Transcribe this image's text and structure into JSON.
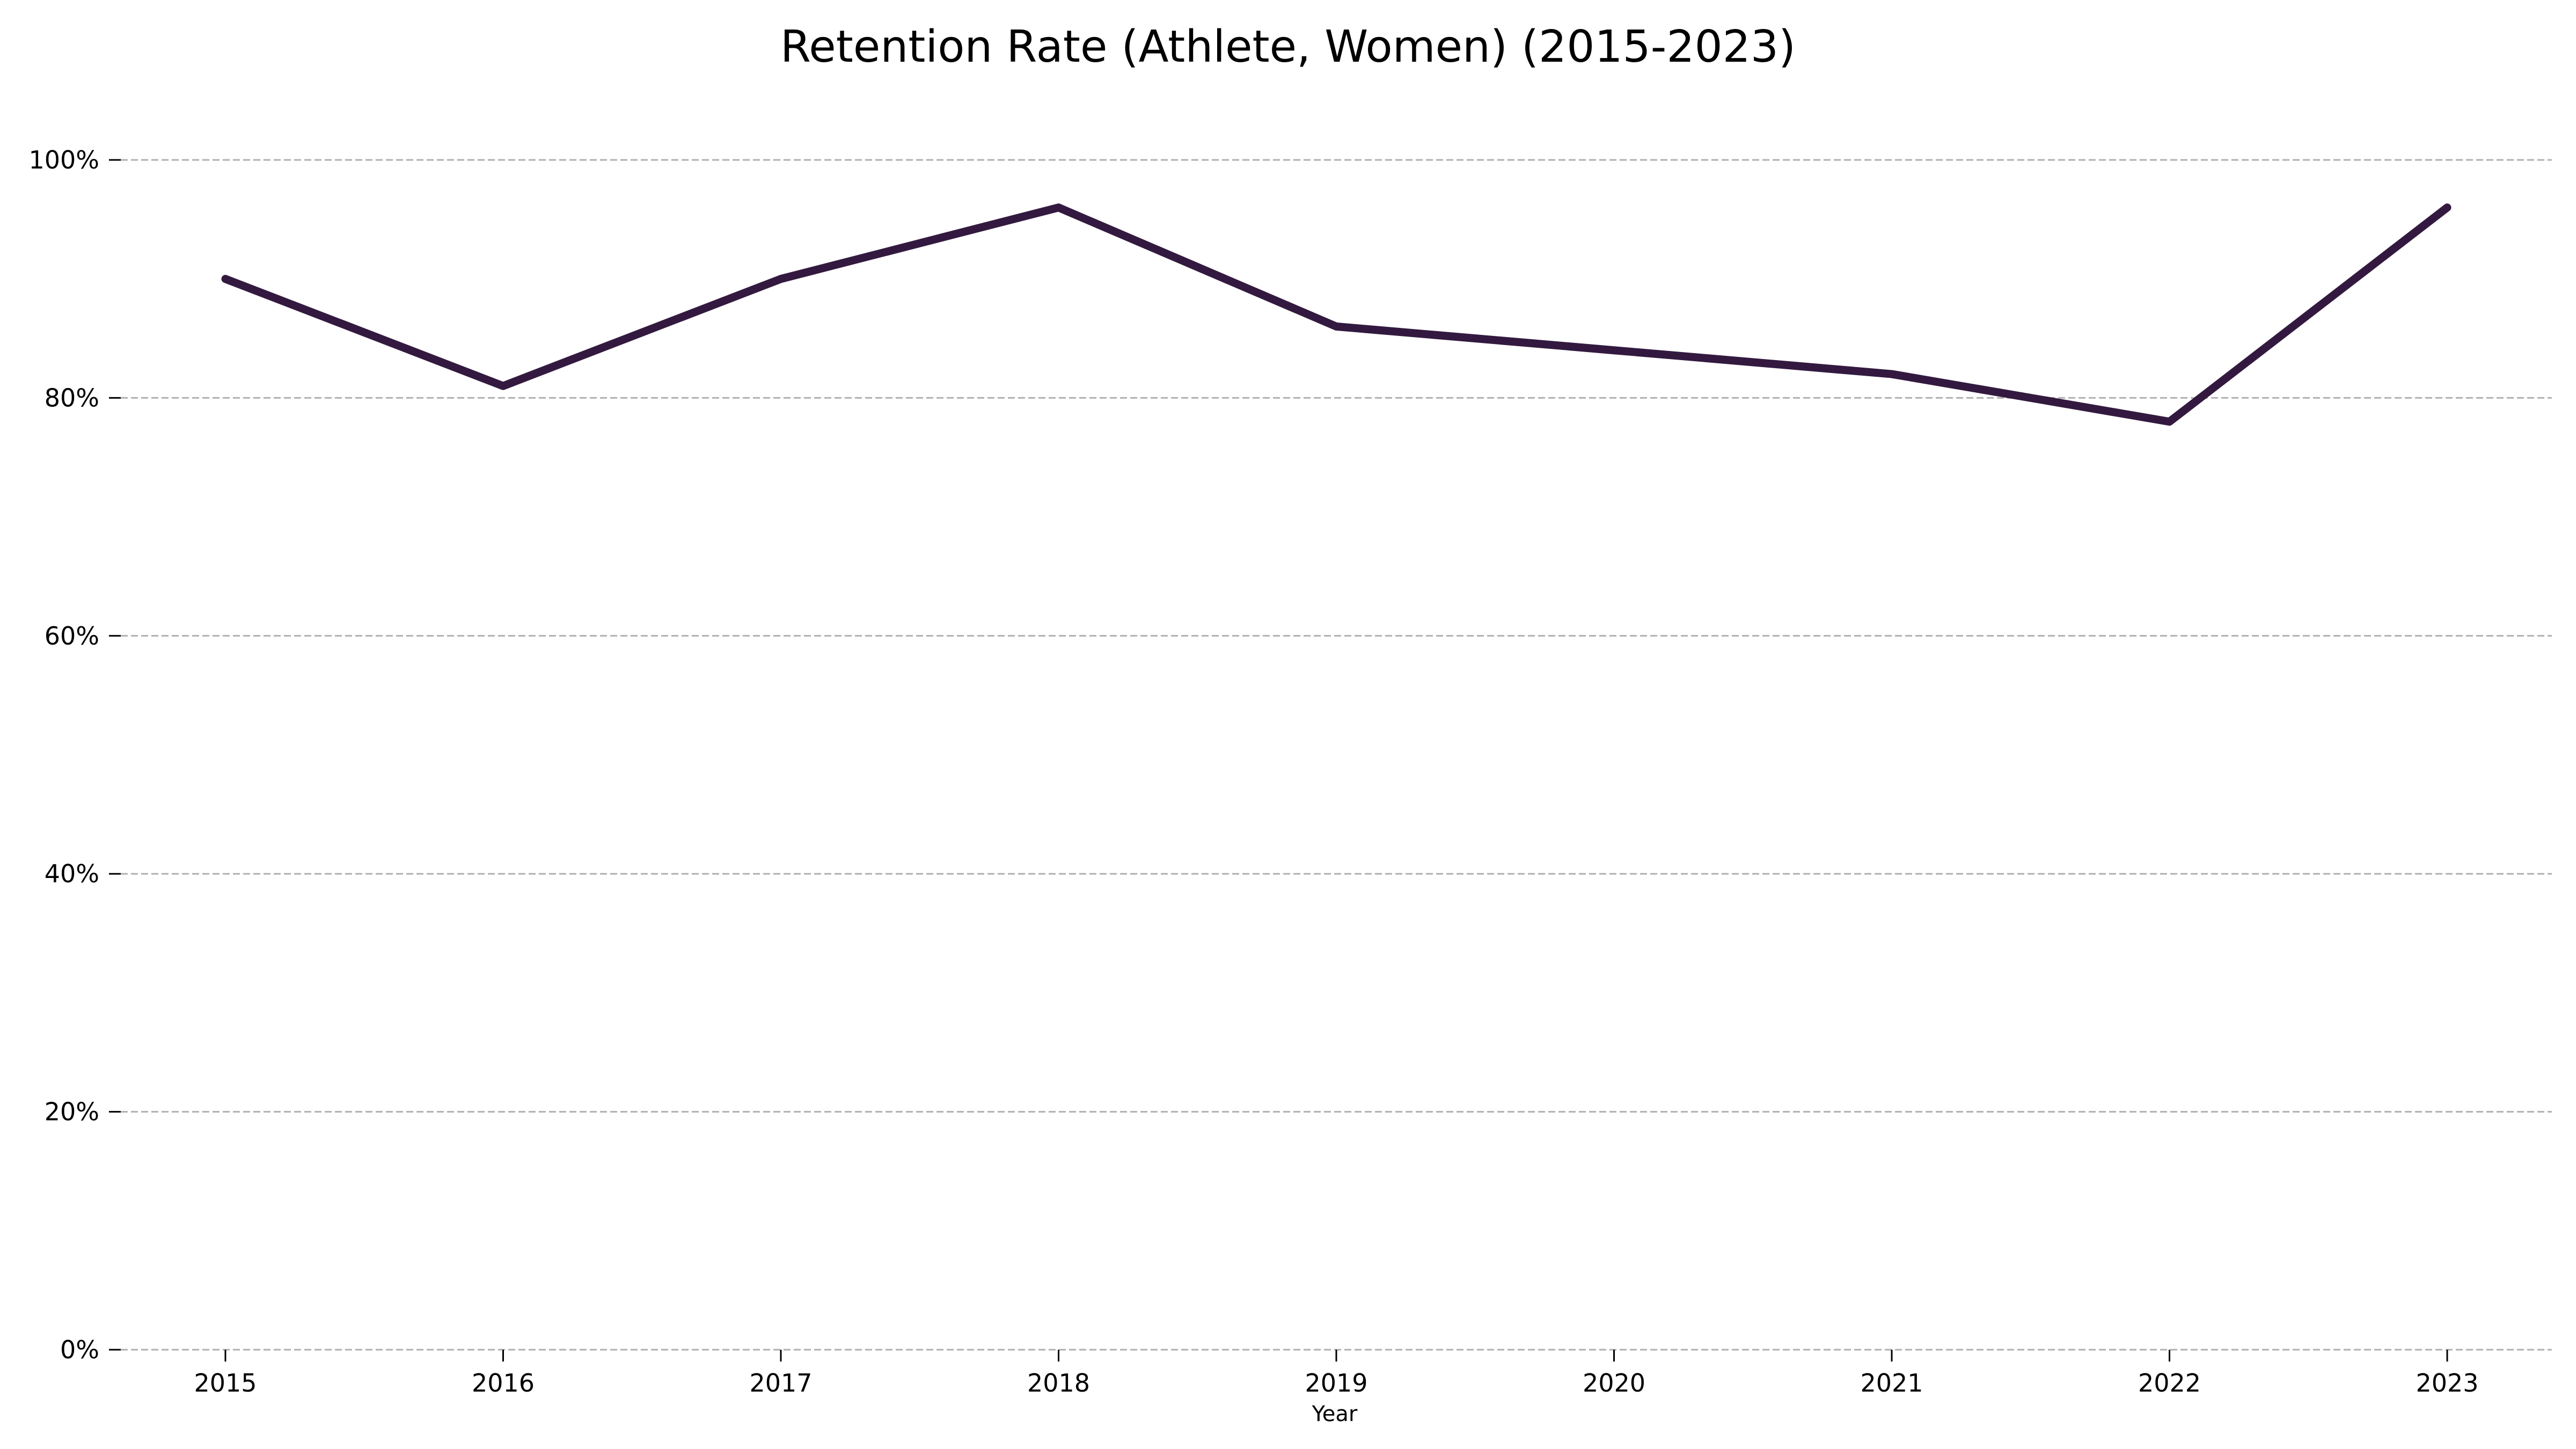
{
  "chart_data": {
    "type": "line",
    "title": "Retention Rate (Athlete, Women) (2015-2023)",
    "xlabel": "Year",
    "ylabel": "",
    "categories": [
      "2015",
      "2016",
      "2017",
      "2018",
      "2019",
      "2020",
      "2021",
      "2022",
      "2023"
    ],
    "series": [
      {
        "values": [
          0.9,
          0.81,
          0.9,
          0.96,
          0.86,
          0.84,
          0.82,
          0.78,
          0.96
        ],
        "color": "#33193f"
      }
    ],
    "ylim": [
      0,
      1
    ],
    "yticks": [
      0,
      0.2,
      0.4,
      0.6,
      0.8,
      1.0
    ],
    "ytick_labels": [
      "0%",
      "20%",
      "40%",
      "60%",
      "80%",
      "100%"
    ],
    "grid": "y-dashed",
    "legend": "none",
    "grid_color": "#b0b0b0"
  }
}
